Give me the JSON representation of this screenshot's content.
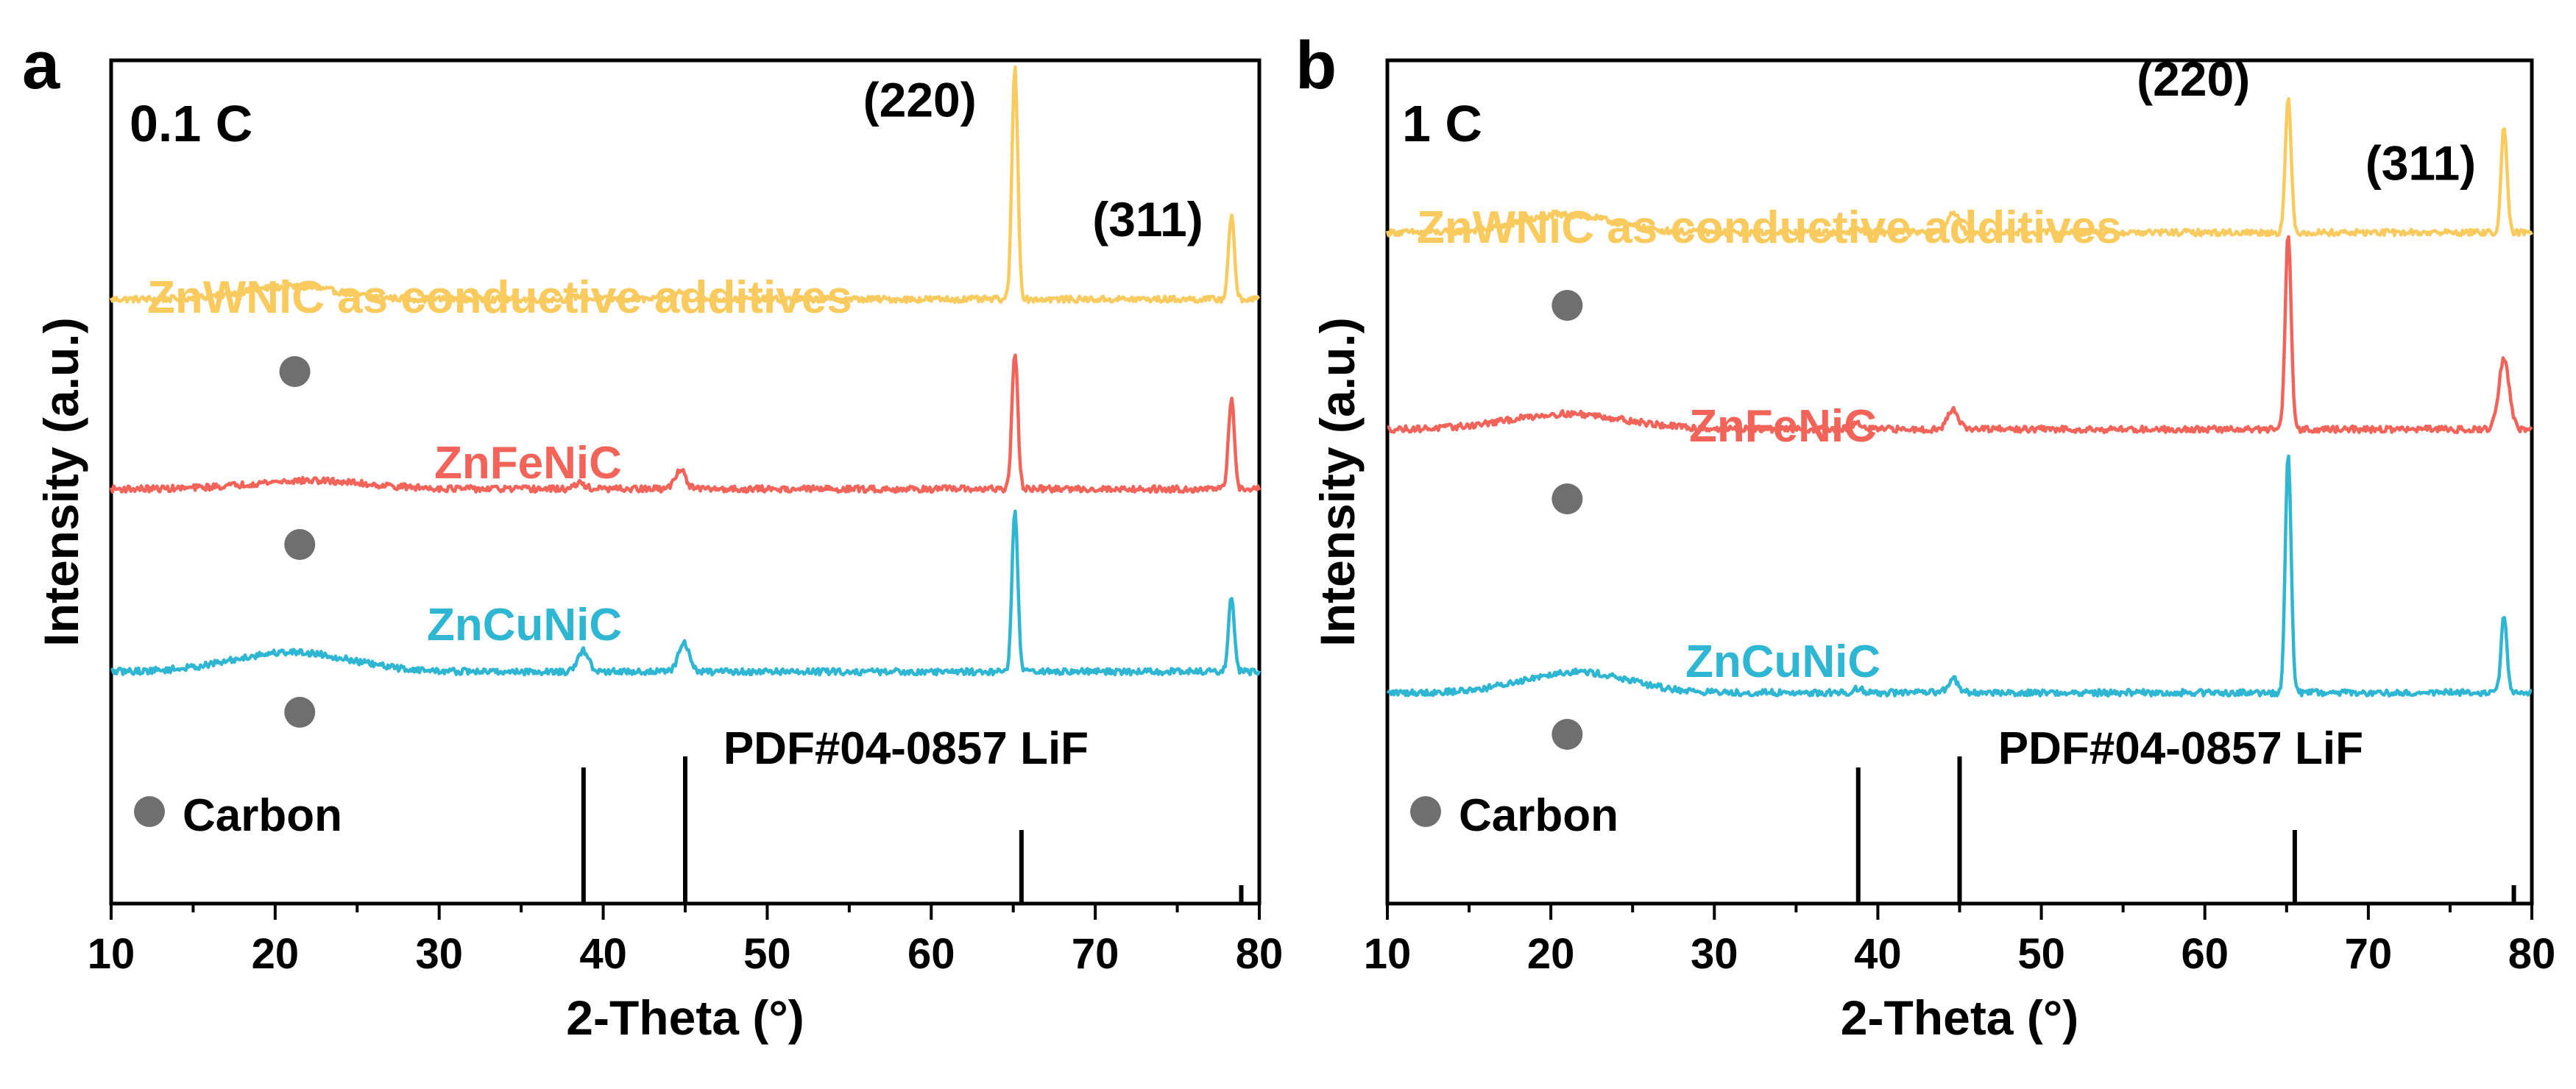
{
  "figure": {
    "colors": {
      "axis": "#000000",
      "marker": "#6f6f6f"
    },
    "xlabel": "2-Theta (°)",
    "ylabel": "Intensity (a.u.)"
  },
  "chart_data": [
    {
      "panel_label": "a",
      "type": "line",
      "title": "0.1 C",
      "xlabel": "2-Theta (°)",
      "ylabel": "Intensity (a.u.)",
      "xlim": [
        10,
        80
      ],
      "xticks": [
        10,
        20,
        30,
        40,
        50,
        60,
        70,
        80
      ],
      "ylim": [
        0,
        12
      ],
      "yticks_shown": false,
      "series": [
        {
          "name": "ZnWNiC as conductive additives",
          "color": "#f9cb5e",
          "baseline": 8.6,
          "hump": {
            "center": 21,
            "width": 4,
            "height": 0.18
          },
          "peaks": [
            {
              "x": 38.6,
              "h": 0.05
            },
            {
              "x": 44.7,
              "h": 0.1
            },
            {
              "x": 65.1,
              "h": 3.3
            },
            {
              "x": 78.3,
              "h": 1.2
            }
          ],
          "carbon_marker": 21.2
        },
        {
          "name": "ZnFeNiC",
          "color": "#f2645a",
          "baseline": 5.9,
          "hump": {
            "center": 22,
            "width": 5,
            "height": 0.12
          },
          "peaks": [
            {
              "x": 38.6,
              "h": 0.08
            },
            {
              "x": 44.7,
              "h": 0.28
            },
            {
              "x": 65.1,
              "h": 1.95
            },
            {
              "x": 78.3,
              "h": 1.3
            }
          ],
          "carbon_marker": 21.5
        },
        {
          "name": "ZnCuNiC",
          "color": "#2fb6d2",
          "baseline": 3.3,
          "hump": {
            "center": 21,
            "width": 5,
            "height": 0.28
          },
          "peaks": [
            {
              "x": 38.8,
              "h": 0.3
            },
            {
              "x": 44.9,
              "h": 0.42
            },
            {
              "x": 65.1,
              "h": 2.3
            },
            {
              "x": 78.3,
              "h": 1.05
            }
          ],
          "carbon_marker": 21.5
        }
      ],
      "reference": {
        "label": "PDF#04-0857 LiF",
        "sticks": [
          {
            "x": 38.8,
            "h": 1.85
          },
          {
            "x": 45.0,
            "h": 2.0
          },
          {
            "x": 65.5,
            "h": 1.0
          },
          {
            "x": 78.9,
            "h": 0.25
          }
        ]
      },
      "annotations": [
        {
          "text": "(220)",
          "x": 59.3,
          "y": 11.2
        },
        {
          "text": "(311)",
          "x": 73.2,
          "y": 9.5
        }
      ],
      "legend": {
        "label": "Carbon"
      }
    },
    {
      "panel_label": "b",
      "type": "line",
      "title": "1 C",
      "xlabel": "2-Theta (°)",
      "ylabel": "Intensity (a.u.)",
      "xlim": [
        10,
        80
      ],
      "xticks": [
        10,
        20,
        30,
        40,
        50,
        60,
        70,
        80
      ],
      "ylim": [
        0,
        12
      ],
      "yticks_shown": false,
      "series": [
        {
          "name": "ZnWNiC as conductive additives",
          "color": "#f9cb5e",
          "baseline": 9.55,
          "hump": {
            "center": 21,
            "width": 4,
            "height": 0.25
          },
          "peaks": [
            {
              "x": 38.7,
              "h": 0.05
            },
            {
              "x": 44.6,
              "h": 0.3
            },
            {
              "x": 65.1,
              "h": 1.9
            },
            {
              "x": 78.3,
              "h": 1.5
            }
          ],
          "carbon_marker": 21.0
        },
        {
          "name": "ZnFeNiC",
          "color": "#f2645a",
          "baseline": 6.75,
          "hump": {
            "center": 21,
            "width": 5,
            "height": 0.22
          },
          "peaks": [
            {
              "x": 38.7,
              "h": 0.08
            },
            {
              "x": 44.6,
              "h": 0.3
            },
            {
              "x": 65.1,
              "h": 2.8
            },
            {
              "x": 78.3,
              "h": 1.0
            }
          ],
          "carbon_marker": 21.0
        },
        {
          "name": "ZnCuNiC",
          "color": "#2fb6d2",
          "baseline": 3.0,
          "hump": {
            "center": 21.5,
            "width": 4.5,
            "height": 0.3
          },
          "peaks": [
            {
              "x": 38.8,
              "h": 0.06
            },
            {
              "x": 44.6,
              "h": 0.2
            },
            {
              "x": 65.1,
              "h": 3.4
            },
            {
              "x": 78.3,
              "h": 1.1
            }
          ],
          "carbon_marker": 21.0
        }
      ],
      "reference": {
        "label": "PDF#04-0857 LiF",
        "sticks": [
          {
            "x": 38.8,
            "h": 1.85
          },
          {
            "x": 45.0,
            "h": 2.0
          },
          {
            "x": 65.5,
            "h": 1.0
          },
          {
            "x": 78.9,
            "h": 0.25
          }
        ]
      },
      "annotations": [
        {
          "text": "(220)",
          "x": 59.3,
          "y": 11.5
        },
        {
          "text": "(311)",
          "x": 73.2,
          "y": 10.3
        }
      ],
      "legend": {
        "label": "Carbon"
      }
    }
  ]
}
